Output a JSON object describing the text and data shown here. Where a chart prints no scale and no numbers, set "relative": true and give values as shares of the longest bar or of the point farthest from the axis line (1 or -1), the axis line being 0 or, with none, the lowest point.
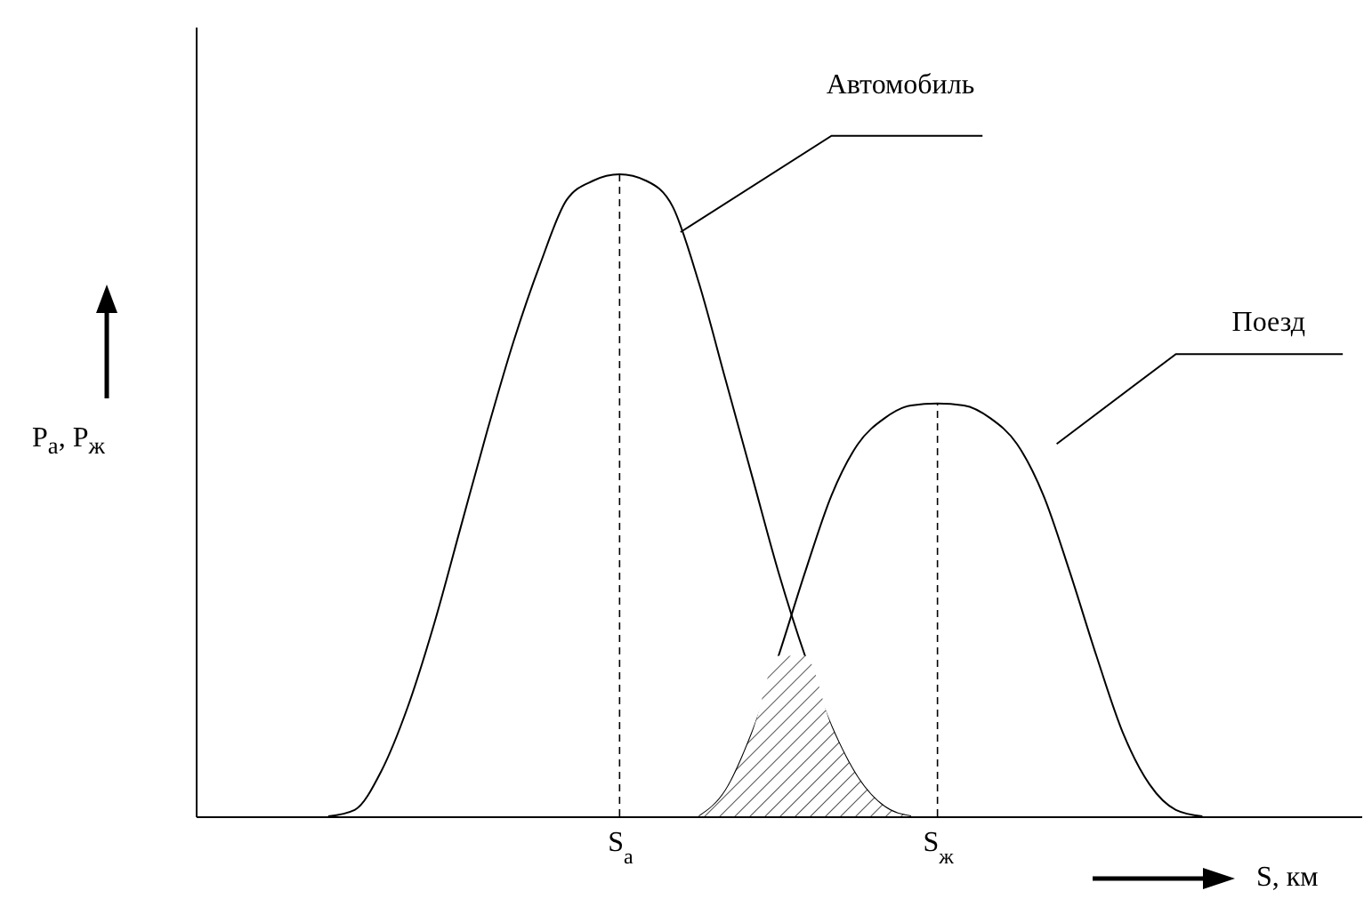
{
  "chart_data": {
    "type": "line",
    "relative": true,
    "ylabel": "P$_{а}$, P$_{ж}$",
    "xlabel": "S, км",
    "grid": false,
    "categories": [
      null,
      null,
      null,
      null,
      null,
      null,
      null,
      null,
      null,
      null,
      null,
      null,
      null,
      null,
      null,
      null,
      "S$_{а}$",
      null,
      null,
      null,
      null,
      null,
      null,
      null,
      null,
      null,
      null,
      null,
      "S$_{ж}$",
      null,
      null,
      null,
      null,
      null,
      null,
      null,
      null,
      null,
      null,
      null,
      null,
      null,
      null,
      null,
      null
    ],
    "series": [
      {
        "name": "Автомобиль",
        "color": "#000000",
        "values": [
          null,
          null,
          null,
          null,
          null,
          0,
          0.01,
          0.07,
          0.17,
          0.3,
          0.45,
          0.6,
          0.74,
          0.86,
          0.96,
          0.99,
          1,
          0.99,
          0.95,
          0.83,
          0.68,
          0.53,
          0.38,
          0.25,
          0.14,
          0.06,
          0.015,
          0,
          null,
          null,
          null,
          null,
          null,
          null,
          null,
          null,
          null,
          null,
          null,
          null,
          null,
          null,
          null,
          null,
          null
        ]
      },
      {
        "name": "Поезд",
        "color": "#000000",
        "values": [
          null,
          null,
          null,
          null,
          null,
          null,
          null,
          null,
          null,
          null,
          null,
          null,
          null,
          null,
          null,
          null,
          null,
          null,
          null,
          0,
          0.04,
          0.13,
          0.25,
          0.38,
          0.5,
          0.58,
          0.62,
          0.64,
          0.643,
          0.64,
          0.62,
          0.58,
          0.5,
          0.38,
          0.25,
          0.13,
          0.05,
          0.01,
          0,
          null,
          null,
          null,
          null,
          null,
          null
        ]
      },
      {
        "type": "area",
        "color": "#555555",
        "values": [
          null,
          null,
          null,
          null,
          null,
          null,
          null,
          null,
          null,
          null,
          null,
          null,
          null,
          null,
          null,
          null,
          null,
          null,
          null,
          0,
          0.04,
          0.13,
          0.25,
          0.25,
          0.14,
          0.06,
          0.015,
          0,
          null,
          null,
          null,
          null,
          null,
          null,
          null,
          null,
          null,
          null,
          null,
          null,
          null,
          null,
          null,
          null,
          null
        ]
      }
    ],
    "ref_lines": [
      {
        "axis": "x",
        "value": "S$_{а}$",
        "line_style": "dashed"
      },
      {
        "axis": "x",
        "value": "S$_{ж}$",
        "line_style": "dashed"
      }
    ]
  }
}
